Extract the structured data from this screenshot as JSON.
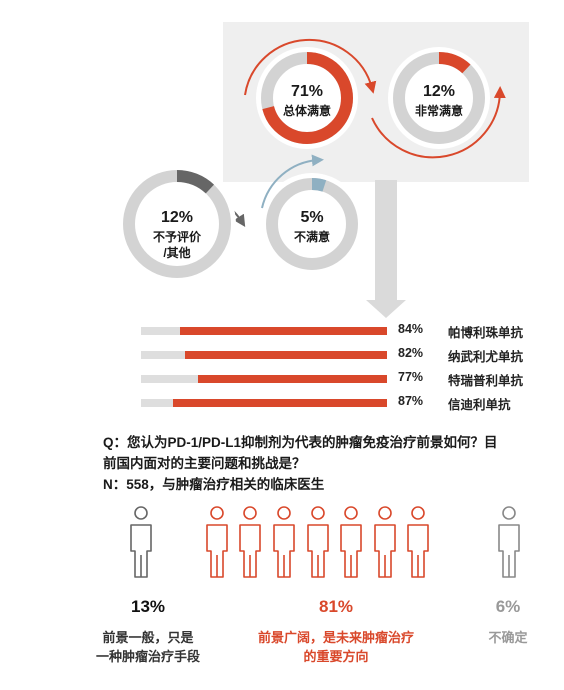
{
  "chart_data": [
    {
      "type": "pie",
      "segments": [
        {
          "label": "总体满意",
          "value": 71,
          "display": "71%"
        },
        {
          "label": "非常满意",
          "value": 12,
          "display": "12%"
        },
        {
          "label": "不予评价/其他",
          "value": 12,
          "display": "12%"
        },
        {
          "label": "不满意",
          "value": 5,
          "display": "5%"
        }
      ]
    },
    {
      "type": "bar",
      "categories": [
        "帕博利珠单抗",
        "纳武利尤单抗",
        "特瑞普利单抗",
        "信迪利单抗"
      ],
      "values": [
        84,
        82,
        77,
        87
      ],
      "value_labels": [
        "84%",
        "82%",
        "77%",
        "87%"
      ],
      "xlim": [
        0,
        100
      ]
    },
    {
      "type": "table",
      "question": [
        "Q：您认为PD-1/PD-L1抑制剂为代表的肿瘤免疫治疗前景如何？目",
        "前国内面对的主要问题和挑战是？",
        "N：558，与肿瘤治疗相关的临床医生"
      ],
      "groups": [
        {
          "value": 13,
          "display": "13%",
          "desc": [
            "前景一般，只是",
            "一种肿瘤治疗手段"
          ],
          "color": "#111111",
          "icon_color": "#666666",
          "icons": 1
        },
        {
          "value": 81,
          "display": "81%",
          "desc": [
            "前景广阔，是未来肿瘤治疗",
            "的重要方向"
          ],
          "color": "#d9482b",
          "icon_color": "#d9482b",
          "icons": 7
        },
        {
          "value": 6,
          "display": "6%",
          "desc": [
            "不确定"
          ],
          "color": "#999999",
          "icon_color": "#888888",
          "icons": 1
        }
      ]
    }
  ],
  "colors": {
    "accent": "#d9482b",
    "track": "#dedede",
    "panel": "#efefef",
    "ring_dark": "#666666",
    "ring_blue": "#8fb0c2",
    "arrow_gray": "#d2d2d2"
  }
}
